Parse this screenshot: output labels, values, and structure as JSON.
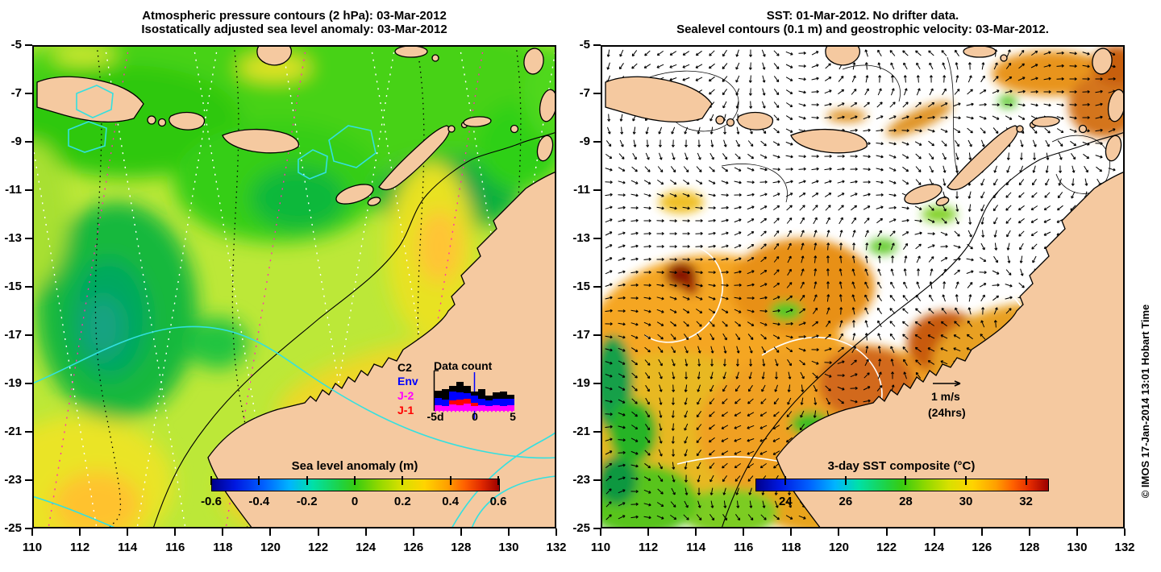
{
  "watermark": "© IMOS 17-Jan-2014 13:01 Hobart Time",
  "colors": {
    "land": "#F5C9A0",
    "coastline": "#000000",
    "cyan_contour": "#33E0E0",
    "white_contour": "#FFFFFF",
    "velocity_arrows": "#000000"
  },
  "left_panel": {
    "title_line1": "Atmospheric pressure contours (2 hPa): 03-Mar-2012",
    "title_line2": "Isostatically adjusted sea level anomaly: 03-Mar-2012",
    "x_ticks": [
      "110",
      "112",
      "114",
      "116",
      "118",
      "120",
      "122",
      "124",
      "126",
      "128",
      "130",
      "132"
    ],
    "y_ticks": [
      "-5",
      "-7",
      "-9",
      "-11",
      "-13",
      "-15",
      "-17",
      "-19",
      "-21",
      "-23",
      "-25"
    ],
    "colorbar": {
      "title": "Sea level anomaly (m)",
      "ticks": [
        "-0.6",
        "-0.4",
        "-0.2",
        "0",
        "0.2",
        "0.4",
        "0.6"
      ]
    },
    "data_count": {
      "title": "Data count",
      "satellites": [
        {
          "label": "C2",
          "color": "#000000"
        },
        {
          "label": "Env",
          "color": "#0000FF"
        },
        {
          "label": "J-2",
          "color": "#FF00FF"
        },
        {
          "label": "J-1",
          "color": "#FF0000"
        }
      ],
      "x_labels": [
        "-5d",
        "0",
        "5"
      ],
      "bars": [
        {
          "j2": 7,
          "j1": 0,
          "env": 9,
          "c2": 9
        },
        {
          "j2": 6,
          "j1": 0,
          "env": 8,
          "c2": 13
        },
        {
          "j2": 8,
          "j1": 5,
          "env": 11,
          "c2": 7
        },
        {
          "j2": 7,
          "j1": 7,
          "env": 9,
          "c2": 13
        },
        {
          "j2": 9,
          "j1": 6,
          "env": 7,
          "c2": 9
        },
        {
          "j2": 6,
          "j1": 4,
          "env": 9,
          "c2": 5
        },
        {
          "j2": 7,
          "j1": 0,
          "env": 8,
          "c2": 12
        },
        {
          "j2": 6,
          "j1": 0,
          "env": 7,
          "c2": 6
        },
        {
          "j2": 7,
          "j1": 0,
          "env": 8,
          "c2": 8
        },
        {
          "j2": 6,
          "j1": 0,
          "env": 9,
          "c2": 9
        },
        {
          "j2": 7,
          "j1": 0,
          "env": 8,
          "c2": 5
        }
      ]
    }
  },
  "right_panel": {
    "title_line1": "SST: 01-Mar-2012. No drifter data.",
    "title_line2": "Sealevel contours (0.1 m) and geostrophic velocity: 03-Mar-2012.",
    "x_ticks": [
      "110",
      "112",
      "114",
      "116",
      "118",
      "120",
      "122",
      "124",
      "126",
      "128",
      "130",
      "132"
    ],
    "y_ticks": [
      "-5",
      "-7",
      "-9",
      "-11",
      "-13",
      "-15",
      "-17",
      "-19",
      "-21",
      "-23",
      "-25"
    ],
    "colorbar": {
      "title": "3-day SST composite (°C)",
      "ticks": [
        "24",
        "26",
        "28",
        "30",
        "32"
      ]
    },
    "velocity_key": {
      "label": "1 m/s",
      "sublabel": "(24hrs)"
    }
  }
}
